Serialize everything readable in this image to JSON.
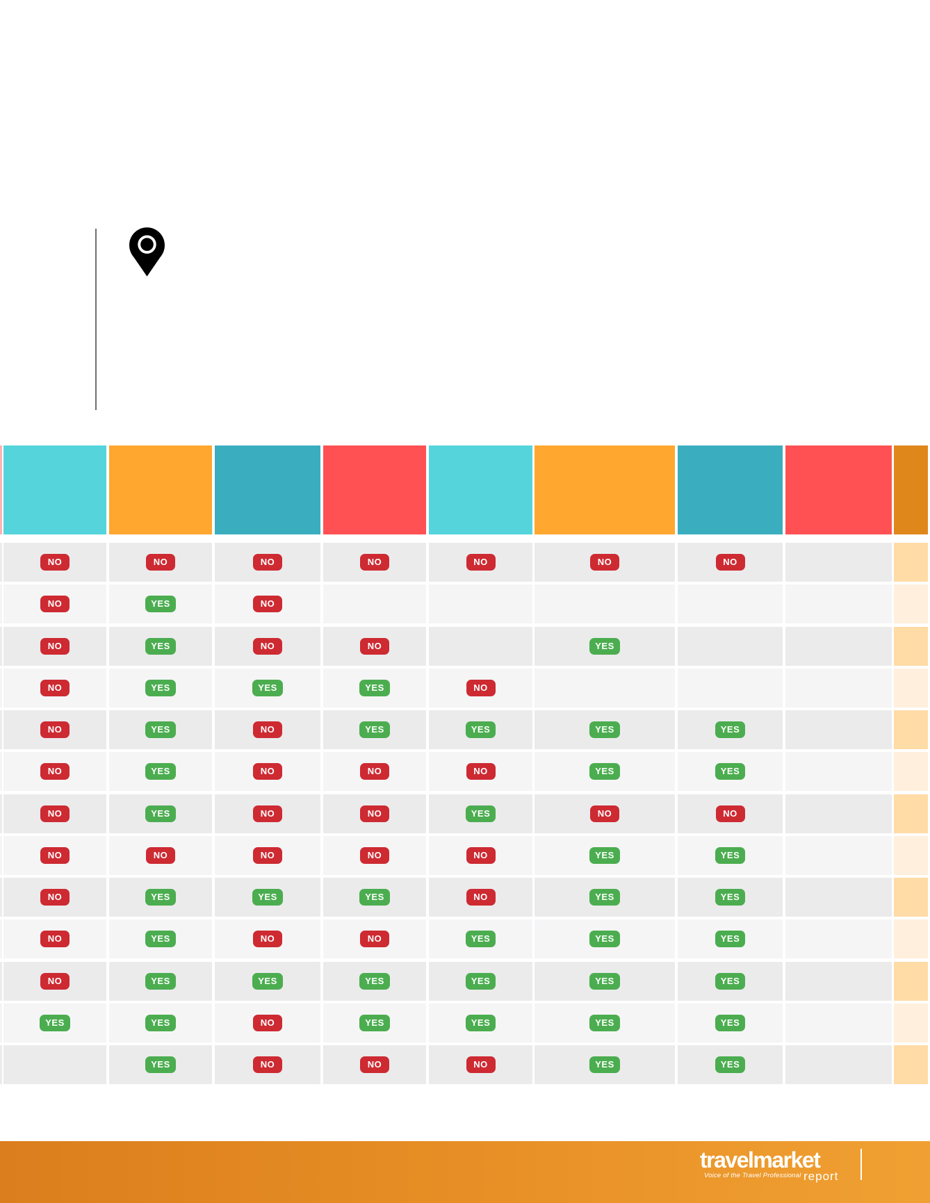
{
  "table": {
    "columns": [
      {
        "name": "cut-edge-column",
        "color": "#FFB2B4",
        "type": "decor"
      },
      {
        "name": "column-1",
        "color": "#55D4DC",
        "slot": 0
      },
      {
        "name": "column-2",
        "color": "#FFA72F",
        "slot": 1
      },
      {
        "name": "column-3",
        "color": "#3AAEBF",
        "slot": 2
      },
      {
        "name": "column-4",
        "color": "#FF5153",
        "slot": 3
      },
      {
        "name": "column-5",
        "color": "#55D4DC",
        "slot": 4
      },
      {
        "name": "column-6",
        "color": "#FFA72F",
        "slot": 5
      },
      {
        "name": "column-7",
        "color": "#3AAEBF",
        "slot": 6
      },
      {
        "name": "column-8",
        "color": "#FF5153",
        "slot": 7
      },
      {
        "name": "column-9",
        "color": "#E0871C",
        "type": "accent"
      }
    ],
    "rows": [
      {
        "cells": [
          "NO",
          "NO",
          "NO",
          "NO",
          "NO",
          "NO",
          "NO",
          ""
        ]
      },
      {
        "cells": [
          "NO",
          "YES",
          "NO",
          "",
          "",
          "",
          "",
          ""
        ]
      },
      {
        "cells": [
          "NO",
          "YES",
          "NO",
          "NO",
          "",
          "YES",
          "",
          ""
        ]
      },
      {
        "cells": [
          "NO",
          "YES",
          "YES",
          "YES",
          "NO",
          "",
          "",
          ""
        ]
      },
      {
        "cells": [
          "NO",
          "YES",
          "NO",
          "YES",
          "YES",
          "YES",
          "YES",
          ""
        ]
      },
      {
        "cells": [
          "NO",
          "YES",
          "NO",
          "NO",
          "NO",
          "YES",
          "YES",
          ""
        ]
      },
      {
        "cells": [
          "NO",
          "YES",
          "NO",
          "NO",
          "YES",
          "NO",
          "NO",
          ""
        ]
      },
      {
        "cells": [
          "NO",
          "NO",
          "NO",
          "NO",
          "NO",
          "YES",
          "YES",
          ""
        ]
      },
      {
        "cells": [
          "NO",
          "YES",
          "YES",
          "YES",
          "NO",
          "YES",
          "YES",
          ""
        ]
      },
      {
        "cells": [
          "NO",
          "YES",
          "NO",
          "NO",
          "YES",
          "YES",
          "YES",
          ""
        ]
      },
      {
        "cells": [
          "NO",
          "YES",
          "YES",
          "YES",
          "YES",
          "YES",
          "YES",
          ""
        ]
      },
      {
        "cells": [
          "YES",
          "YES",
          "NO",
          "YES",
          "YES",
          "YES",
          "YES",
          ""
        ]
      },
      {
        "cells": [
          "",
          "YES",
          "NO",
          "NO",
          "NO",
          "YES",
          "YES",
          ""
        ]
      }
    ],
    "badge": {
      "yes_label": "YES",
      "no_label": "NO",
      "yes_bg": "#4BAD4F",
      "no_bg": "#CD2A32",
      "text_color": "#FFFFFF"
    },
    "row_bg": [
      "#EBEBEC",
      "#F5F5F6"
    ],
    "accent_bg": [
      "#FFDBA6",
      "#FFEFDC"
    ]
  },
  "icons": {
    "map_pin_color": "#000000"
  },
  "footer": {
    "brand": "travelmarket",
    "tagline": "Voice of the Travel Professional",
    "suffix": "report",
    "gradient_left": "#DB7E1D",
    "gradient_right": "#F0A032"
  }
}
